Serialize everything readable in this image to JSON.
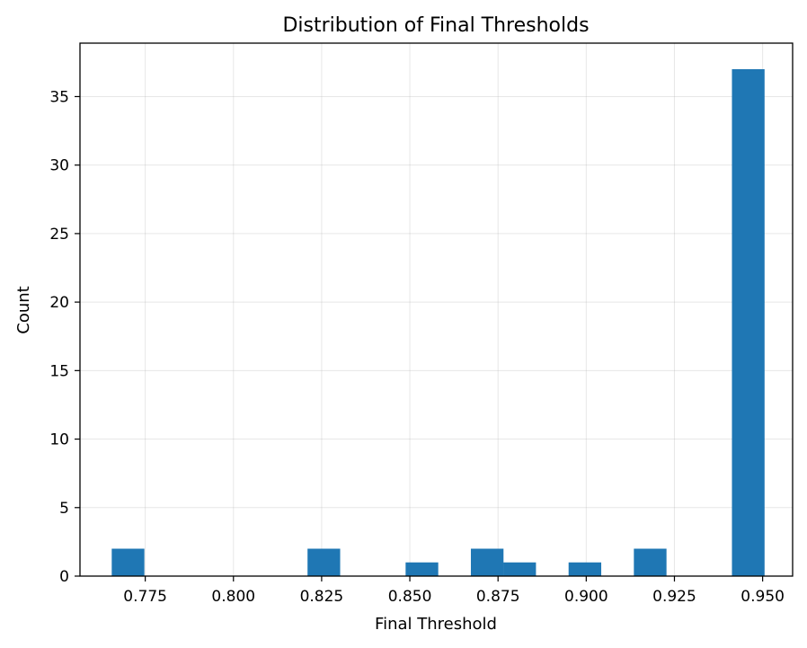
{
  "chart_data": {
    "type": "bar",
    "title": "Distribution of Final Thresholds",
    "xlabel": "Final Threshold",
    "ylabel": "Count",
    "xlim": [
      0.7565,
      0.9585
    ],
    "ylim": [
      0,
      38.9
    ],
    "xticks": [
      0.775,
      0.8,
      0.825,
      0.85,
      0.875,
      0.9,
      0.925,
      0.95
    ],
    "xtick_labels": [
      "0.775",
      "0.800",
      "0.825",
      "0.850",
      "0.875",
      "0.900",
      "0.925",
      "0.950"
    ],
    "yticks": [
      0,
      5,
      10,
      15,
      20,
      25,
      30,
      35
    ],
    "ytick_labels": [
      "0",
      "5",
      "10",
      "15",
      "20",
      "25",
      "30",
      "35"
    ],
    "grid": true,
    "bin_width": 0.00925,
    "bins": [
      {
        "x0": 0.7655,
        "count": 2
      },
      {
        "x0": 0.821,
        "count": 2
      },
      {
        "x0": 0.8488,
        "count": 1
      },
      {
        "x0": 0.8673,
        "count": 2
      },
      {
        "x0": 0.8765,
        "count": 1
      },
      {
        "x0": 0.895,
        "count": 1
      },
      {
        "x0": 0.9135,
        "count": 2
      },
      {
        "x0": 0.9413,
        "count": 37
      }
    ],
    "bar_color": "#1f77b4"
  }
}
